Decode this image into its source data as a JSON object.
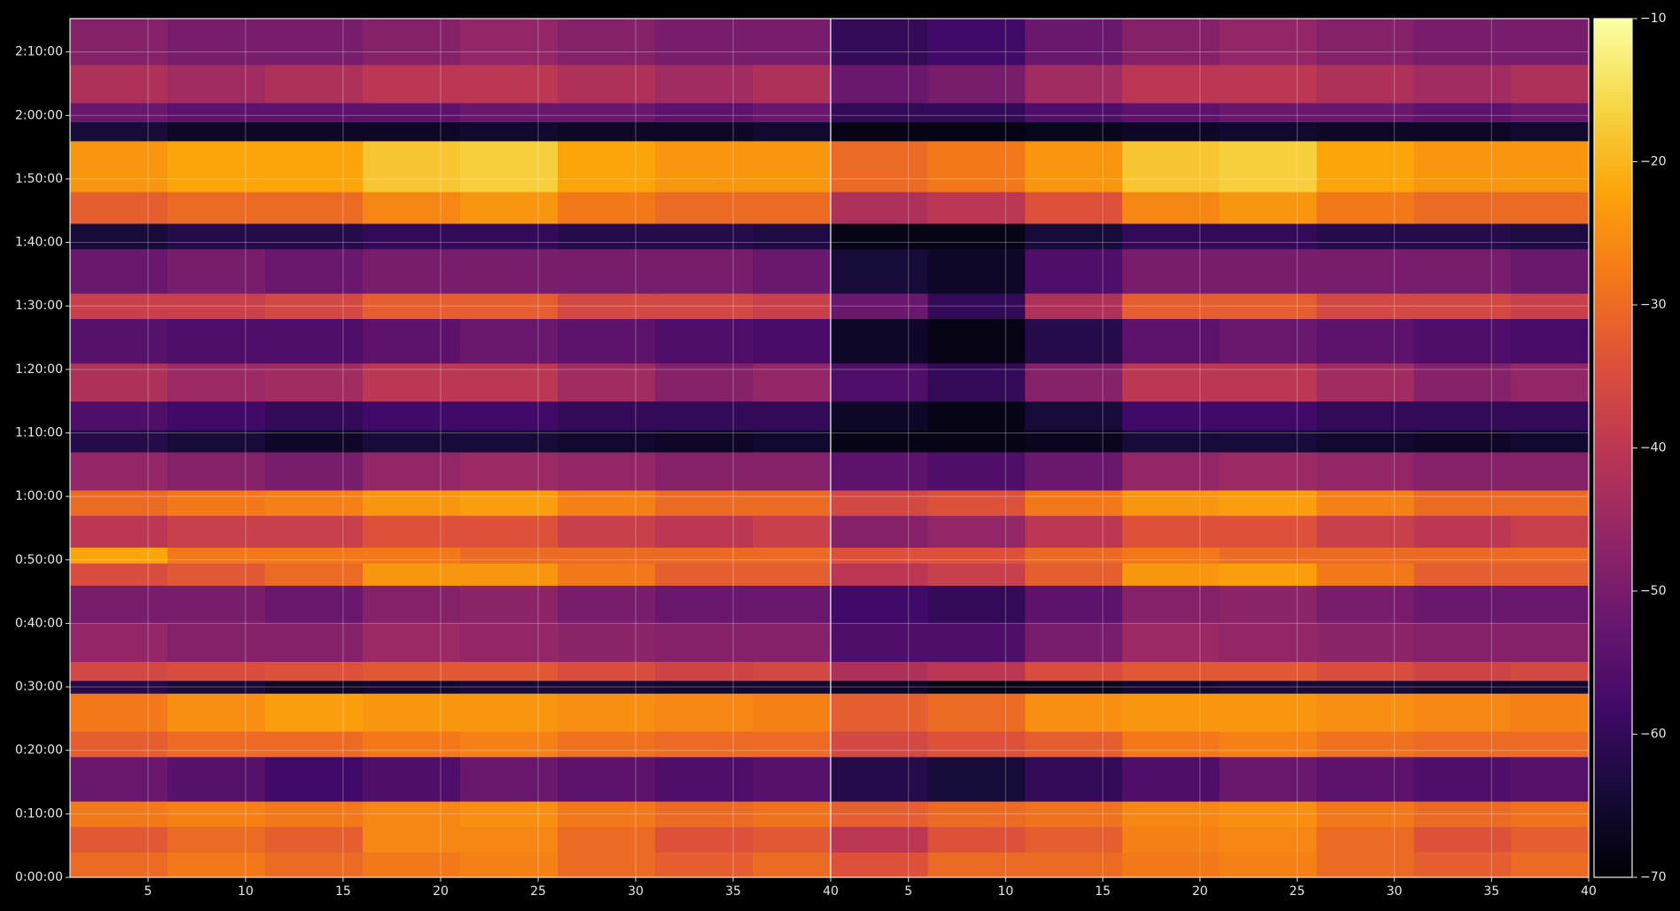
{
  "chart_data": [
    {
      "type": "heatmap",
      "colormap": "inferno",
      "grid": true,
      "xlim": [
        1,
        40
      ],
      "ylim": [
        0,
        8115
      ],
      "xticks": [
        5,
        10,
        15,
        20,
        25,
        30,
        35,
        40
      ],
      "yticks": [
        {
          "value": 0,
          "label": "0:00:00"
        },
        {
          "value": 600,
          "label": "0:10:00"
        },
        {
          "value": 1200,
          "label": "0:20:00"
        },
        {
          "value": 1800,
          "label": "0:30:00"
        },
        {
          "value": 2400,
          "label": "0:40:00"
        },
        {
          "value": 3000,
          "label": "0:50:00"
        },
        {
          "value": 3600,
          "label": "1:00:00"
        },
        {
          "value": 4200,
          "label": "1:10:00"
        },
        {
          "value": 4800,
          "label": "1:20:00"
        },
        {
          "value": 5400,
          "label": "1:30:00"
        },
        {
          "value": 6000,
          "label": "1:40:00"
        },
        {
          "value": 6600,
          "label": "1:50:00"
        },
        {
          "value": 7200,
          "label": "2:00:00"
        },
        {
          "value": 7800,
          "label": "2:10:00"
        }
      ],
      "xbins": [
        1,
        6,
        11,
        16,
        21,
        26,
        31,
        36,
        40
      ],
      "ybins": [
        0,
        240,
        480,
        720,
        1140,
        1380,
        1740,
        1860,
        2040,
        2400,
        2760,
        2970,
        3120,
        3420,
        3660,
        4020,
        4230,
        4500,
        4860,
        5280,
        5520,
        5940,
        6180,
        6480,
        6960,
        7140,
        7320,
        7680,
        8115
      ],
      "values": [
        [
          -30,
          -28,
          -30,
          -28,
          -27,
          -30,
          -32,
          -30
        ],
        [
          -33,
          -30,
          -32,
          -26,
          -26,
          -30,
          -34,
          -33
        ],
        [
          -28,
          -27,
          -28,
          -26,
          -25,
          -28,
          -30,
          -29
        ],
        [
          -52,
          -55,
          -58,
          -56,
          -52,
          -54,
          -56,
          -55
        ],
        [
          -32,
          -30,
          -30,
          -28,
          -27,
          -29,
          -30,
          -30
        ],
        [
          -28,
          -25,
          -23,
          -24,
          -24,
          -25,
          -26,
          -27
        ],
        [
          -62,
          -64,
          -66,
          -65,
          -64,
          -64,
          -65,
          -65
        ],
        [
          -36,
          -35,
          -34,
          -33,
          -33,
          -35,
          -37,
          -36
        ],
        [
          -46,
          -48,
          -48,
          -45,
          -46,
          -47,
          -48,
          -48
        ],
        [
          -50,
          -50,
          -52,
          -48,
          -47,
          -50,
          -52,
          -52
        ],
        [
          -35,
          -33,
          -30,
          -24,
          -24,
          -28,
          -32,
          -32
        ],
        [
          -22,
          -28,
          -28,
          -28,
          -30,
          -30,
          -30,
          -30
        ],
        [
          -40,
          -38,
          -38,
          -34,
          -34,
          -38,
          -40,
          -38
        ],
        [
          -30,
          -28,
          -27,
          -24,
          -23,
          -27,
          -30,
          -30
        ],
        [
          -46,
          -48,
          -50,
          -46,
          -45,
          -46,
          -48,
          -48
        ],
        [
          -62,
          -64,
          -66,
          -64,
          -64,
          -65,
          -66,
          -65
        ],
        [
          -56,
          -58,
          -60,
          -58,
          -58,
          -60,
          -60,
          -60
        ],
        [
          -42,
          -45,
          -44,
          -40,
          -40,
          -44,
          -48,
          -46
        ],
        [
          -55,
          -56,
          -56,
          -54,
          -52,
          -54,
          -56,
          -57
        ],
        [
          -38,
          -38,
          -36,
          -32,
          -32,
          -36,
          -36,
          -38
        ],
        [
          -52,
          -50,
          -52,
          -50,
          -50,
          -50,
          -50,
          -52
        ],
        [
          -64,
          -62,
          -62,
          -60,
          -60,
          -62,
          -62,
          -63
        ],
        [
          -32,
          -30,
          -30,
          -26,
          -24,
          -28,
          -30,
          -30
        ],
        [
          -24,
          -22,
          -22,
          -18,
          -17,
          -22,
          -24,
          -24
        ],
        [
          -64,
          -66,
          -66,
          -66,
          -65,
          -66,
          -66,
          -65
        ],
        [
          -52,
          -54,
          -54,
          -54,
          -52,
          -52,
          -54,
          -52
        ],
        [
          -42,
          -44,
          -42,
          -40,
          -40,
          -42,
          -44,
          -42
        ],
        [
          -48,
          -50,
          -50,
          -48,
          -46,
          -48,
          -50,
          -50
        ]
      ]
    },
    {
      "type": "heatmap",
      "colormap": "inferno",
      "grid": true,
      "xlim": [
        1,
        40
      ],
      "ylim": [
        0,
        8115
      ],
      "xticks": [
        5,
        10,
        15,
        20,
        25,
        30,
        35,
        40
      ],
      "xbins": [
        1,
        6,
        11,
        16,
        21,
        26,
        31,
        36,
        40
      ],
      "ybins": [
        0,
        240,
        480,
        720,
        1140,
        1380,
        1740,
        1860,
        2040,
        2400,
        2760,
        2970,
        3120,
        3420,
        3660,
        4020,
        4230,
        4500,
        4860,
        5280,
        5520,
        5940,
        6180,
        6480,
        6960,
        7140,
        7320,
        7680,
        8115
      ],
      "values": [
        [
          -34,
          -30,
          -30,
          -28,
          -27,
          -30,
          -32,
          -30
        ],
        [
          -40,
          -34,
          -32,
          -27,
          -26,
          -30,
          -34,
          -32
        ],
        [
          -32,
          -30,
          -29,
          -26,
          -25,
          -28,
          -30,
          -29
        ],
        [
          -62,
          -64,
          -60,
          -56,
          -52,
          -54,
          -56,
          -55
        ],
        [
          -36,
          -34,
          -32,
          -28,
          -27,
          -29,
          -30,
          -30
        ],
        [
          -32,
          -30,
          -25,
          -24,
          -24,
          -25,
          -26,
          -27
        ],
        [
          -66,
          -68,
          -67,
          -65,
          -64,
          -64,
          -65,
          -65
        ],
        [
          -42,
          -40,
          -35,
          -33,
          -33,
          -35,
          -37,
          -36
        ],
        [
          -56,
          -56,
          -50,
          -45,
          -46,
          -47,
          -48,
          -48
        ],
        [
          -58,
          -60,
          -54,
          -48,
          -47,
          -50,
          -52,
          -52
        ],
        [
          -40,
          -38,
          -32,
          -24,
          -23,
          -28,
          -32,
          -32
        ],
        [
          -34,
          -34,
          -30,
          -28,
          -30,
          -30,
          -30,
          -30
        ],
        [
          -48,
          -46,
          -40,
          -34,
          -34,
          -38,
          -40,
          -38
        ],
        [
          -36,
          -34,
          -28,
          -24,
          -23,
          -27,
          -30,
          -30
        ],
        [
          -54,
          -56,
          -52,
          -46,
          -45,
          -46,
          -48,
          -48
        ],
        [
          -68,
          -68,
          -67,
          -64,
          -64,
          -65,
          -66,
          -65
        ],
        [
          -66,
          -68,
          -64,
          -58,
          -58,
          -60,
          -60,
          -60
        ],
        [
          -56,
          -60,
          -48,
          -40,
          -40,
          -44,
          -48,
          -46
        ],
        [
          -66,
          -68,
          -62,
          -54,
          -52,
          -54,
          -56,
          -57
        ],
        [
          -52,
          -60,
          -42,
          -32,
          -32,
          -36,
          -36,
          -38
        ],
        [
          -64,
          -66,
          -56,
          -50,
          -50,
          -50,
          -50,
          -52
        ],
        [
          -68,
          -68,
          -64,
          -60,
          -60,
          -62,
          -62,
          -63
        ],
        [
          -42,
          -40,
          -34,
          -26,
          -24,
          -28,
          -30,
          -30
        ],
        [
          -30,
          -28,
          -24,
          -18,
          -17,
          -22,
          -24,
          -24
        ],
        [
          -68,
          -68,
          -67,
          -66,
          -65,
          -66,
          -66,
          -65
        ],
        [
          -60,
          -60,
          -56,
          -54,
          -52,
          -52,
          -54,
          -52
        ],
        [
          -52,
          -50,
          -44,
          -40,
          -40,
          -42,
          -44,
          -42
        ],
        [
          -60,
          -58,
          -52,
          -48,
          -46,
          -48,
          -50,
          -50
        ]
      ],
      "colorbar": {
        "lim": [
          -70,
          -10
        ],
        "ticks": [
          {
            "value": -70,
            "label": "−70"
          },
          {
            "value": -60,
            "label": "−60"
          },
          {
            "value": -50,
            "label": "−50"
          },
          {
            "value": -40,
            "label": "−40"
          },
          {
            "value": -30,
            "label": "−30"
          },
          {
            "value": -20,
            "label": "−20"
          },
          {
            "value": -10,
            "label": "−10"
          }
        ]
      }
    }
  ]
}
